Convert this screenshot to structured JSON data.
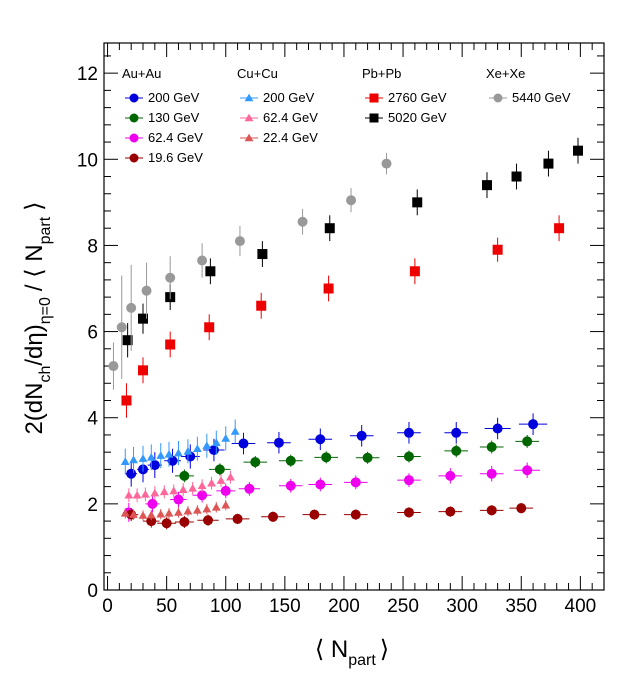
{
  "chart_data": {
    "type": "scatter",
    "xlabel": "⟨ N",
    "xlabel_sub": "part",
    "xlabel_close": "⟩",
    "ylabel": "2(dN",
    "ylabel_sub1": "ch",
    "ylabel_mid": "/dη)",
    "ylabel_sub2": "η=0",
    "ylabel_tail": "/ ⟨ N",
    "ylabel_sub3": "part",
    "ylabel_close": "⟩",
    "xlim": [
      -3,
      420
    ],
    "ylim": [
      0,
      12.7
    ],
    "x_ticks": [
      0,
      50,
      100,
      150,
      200,
      250,
      300,
      350,
      400
    ],
    "y_ticks": [
      0,
      2,
      4,
      6,
      8,
      10,
      12
    ],
    "legend_groups": [
      {
        "header": "Au+Au",
        "entries": [
          "200  GeV",
          "130  GeV",
          "62.4 GeV",
          "19.6 GeV"
        ]
      },
      {
        "header": "Cu+Cu",
        "entries": [
          "200  GeV",
          "62.4 GeV",
          "22.4 GeV"
        ]
      },
      {
        "header": "Pb+Pb",
        "entries": [
          "2760 GeV",
          "5020 GeV"
        ]
      },
      {
        "header": "Xe+Xe",
        "entries": [
          "5440 GeV"
        ]
      }
    ],
    "series": [
      {
        "name": "Au+Au 200 GeV",
        "color": "#0000dd",
        "marker": "circle",
        "x": [
          20,
          30,
          40,
          55,
          70,
          90,
          115,
          145,
          180,
          215,
          255,
          295,
          330,
          360
        ],
        "y": [
          2.7,
          2.8,
          2.9,
          3.0,
          3.1,
          3.25,
          3.4,
          3.42,
          3.5,
          3.58,
          3.65,
          3.65,
          3.75,
          3.85
        ],
        "err": [
          0.3,
          0.3,
          0.3,
          0.28,
          0.28,
          0.26,
          0.25,
          0.25,
          0.25,
          0.25,
          0.25,
          0.25,
          0.25,
          0.25
        ],
        "xerr": [
          5,
          5,
          6,
          7,
          8,
          9,
          10,
          10,
          10,
          10,
          10,
          10,
          11,
          12
        ]
      },
      {
        "name": "Au+Au 130 GeV",
        "color": "#006600",
        "marker": "circle",
        "x": [
          65,
          95,
          125,
          155,
          185,
          220,
          255,
          295,
          325,
          355
        ],
        "y": [
          2.65,
          2.8,
          2.97,
          3.0,
          3.08,
          3.07,
          3.1,
          3.23,
          3.32,
          3.45
        ],
        "err": [
          0.15,
          0.14,
          0.14,
          0.14,
          0.14,
          0.14,
          0.14,
          0.15,
          0.15,
          0.15
        ],
        "xerr": [
          8,
          9,
          10,
          10,
          10,
          10,
          10,
          10,
          10,
          10
        ]
      },
      {
        "name": "Au+Au 62.4 GeV",
        "color": "#ee00ee",
        "marker": "circle",
        "x": [
          18,
          38,
          60,
          80,
          100,
          120,
          155,
          180,
          210,
          255,
          290,
          325,
          355
        ],
        "y": [
          1.8,
          2.0,
          2.1,
          2.2,
          2.3,
          2.35,
          2.42,
          2.45,
          2.5,
          2.55,
          2.65,
          2.7,
          2.78
        ],
        "err": [
          0.22,
          0.2,
          0.18,
          0.17,
          0.17,
          0.16,
          0.16,
          0.16,
          0.16,
          0.16,
          0.18,
          0.18,
          0.18
        ],
        "xerr": [
          5,
          6,
          7,
          8,
          8,
          9,
          10,
          10,
          10,
          10,
          10,
          10,
          11
        ]
      },
      {
        "name": "Au+Au 19.6 GeV",
        "color": "#990000",
        "marker": "circle",
        "x": [
          20,
          37,
          50,
          65,
          85,
          110,
          140,
          175,
          210,
          255,
          290,
          325,
          350
        ],
        "y": [
          1.75,
          1.6,
          1.55,
          1.58,
          1.62,
          1.65,
          1.7,
          1.75,
          1.75,
          1.8,
          1.82,
          1.85,
          1.9
        ],
        "err": [
          0.15,
          0.15,
          0.14,
          0.14,
          0.13,
          0.12,
          0.12,
          0.12,
          0.12,
          0.12,
          0.12,
          0.12,
          0.12
        ],
        "xerr": [
          6,
          7,
          8,
          8,
          9,
          10,
          10,
          10,
          10,
          10,
          10,
          10,
          10
        ]
      },
      {
        "name": "Cu+Cu 200 GeV",
        "color": "#3399ff",
        "marker": "triangle",
        "x": [
          15,
          22,
          30,
          37,
          45,
          52,
          60,
          68,
          76,
          84,
          92,
          100,
          108
        ],
        "y": [
          2.98,
          3.02,
          3.05,
          3.08,
          3.12,
          3.15,
          3.18,
          3.22,
          3.28,
          3.35,
          3.42,
          3.52,
          3.68
        ],
        "err": [
          0.3,
          0.3,
          0.3,
          0.3,
          0.29,
          0.29,
          0.28,
          0.28,
          0.28,
          0.28,
          0.28,
          0.28,
          0.28
        ],
        "xerr": [
          2,
          2,
          2,
          2,
          2,
          2,
          2,
          2,
          2,
          2,
          2,
          2,
          2
        ]
      },
      {
        "name": "Cu+Cu 62.4 GeV",
        "color": "#ff6699",
        "marker": "triangle",
        "x": [
          18,
          25,
          32,
          40,
          48,
          56,
          64,
          72,
          80,
          88,
          96,
          104
        ],
        "y": [
          2.2,
          2.2,
          2.22,
          2.25,
          2.28,
          2.3,
          2.33,
          2.36,
          2.42,
          2.48,
          2.54,
          2.62
        ],
        "err": [
          0.16,
          0.16,
          0.16,
          0.16,
          0.15,
          0.15,
          0.15,
          0.15,
          0.15,
          0.15,
          0.15,
          0.15
        ],
        "xerr": [
          2,
          2,
          2,
          2,
          2,
          2,
          2,
          2,
          2,
          2,
          2,
          2
        ]
      },
      {
        "name": "Cu+Cu 22.4 GeV",
        "color": "#dd5555",
        "marker": "triangle",
        "x": [
          15,
          22,
          30,
          37,
          45,
          52,
          60,
          68,
          76,
          84,
          92,
          100
        ],
        "y": [
          1.78,
          1.75,
          1.73,
          1.74,
          1.76,
          1.78,
          1.8,
          1.83,
          1.85,
          1.88,
          1.92,
          1.97
        ],
        "err": [
          0.12,
          0.12,
          0.12,
          0.12,
          0.12,
          0.12,
          0.12,
          0.12,
          0.12,
          0.12,
          0.12,
          0.12
        ],
        "xerr": [
          2,
          2,
          2,
          2,
          2,
          2,
          2,
          2,
          2,
          2,
          2,
          2
        ]
      },
      {
        "name": "Pb+Pb 2760 GeV",
        "color": "#ee0000",
        "marker": "square",
        "x": [
          16,
          30,
          53,
          86,
          130,
          187,
          260,
          330,
          382
        ],
        "y": [
          4.4,
          5.1,
          5.7,
          6.1,
          6.6,
          7.0,
          7.4,
          7.9,
          8.4
        ],
        "err": [
          0.4,
          0.3,
          0.3,
          0.3,
          0.3,
          0.3,
          0.3,
          0.28,
          0.3
        ],
        "xerr": [
          0.5,
          0.5,
          0.5,
          0.5,
          0.5,
          0.5,
          0.5,
          4,
          0.5
        ]
      },
      {
        "name": "Pb+Pb 5020 GeV",
        "color": "#000000",
        "marker": "square",
        "x": [
          17,
          30,
          53,
          87,
          131,
          188,
          262,
          321,
          346,
          373,
          398
        ],
        "y": [
          5.8,
          6.3,
          6.8,
          7.4,
          7.8,
          8.4,
          9.0,
          9.4,
          9.6,
          9.9,
          10.2
        ],
        "err": [
          0.4,
          0.35,
          0.3,
          0.3,
          0.3,
          0.3,
          0.3,
          0.3,
          0.3,
          0.3,
          0.3
        ],
        "xerr": [
          0.5,
          0.5,
          0.5,
          0.5,
          0.5,
          0.5,
          0.5,
          0.5,
          0.5,
          0.5,
          0.5
        ]
      },
      {
        "name": "Xe+Xe 5440 GeV",
        "color": "#999999",
        "marker": "circle",
        "x": [
          5,
          12,
          20,
          33,
          53,
          80,
          112,
          165,
          206,
          236
        ],
        "y": [
          5.2,
          6.1,
          6.55,
          6.95,
          7.25,
          7.65,
          8.1,
          8.55,
          9.05,
          9.9
        ],
        "err": [
          0.55,
          1.2,
          1.0,
          0.65,
          0.5,
          0.4,
          0.35,
          0.3,
          0.28,
          0.25
        ],
        "xerr": [
          0,
          0,
          0,
          0,
          0,
          0,
          0,
          0,
          0,
          0
        ]
      }
    ]
  }
}
